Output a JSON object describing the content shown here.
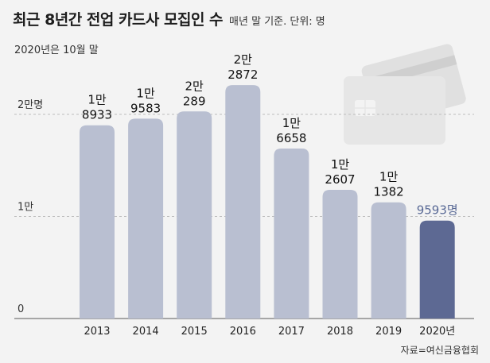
{
  "header": {
    "title": "최근 8년간 전업 카드사 모집인 수",
    "subtitle": "매년 말 기준. 단위: 명",
    "note": "2020년은 10월 말",
    "source": "자료=여신금융협회"
  },
  "chart_data": {
    "type": "bar",
    "title": "최근 8년간 전업 카드사 모집인 수",
    "categories": [
      "2013",
      "2014",
      "2015",
      "2016",
      "2017",
      "2018",
      "2019",
      "2020년"
    ],
    "values": [
      18933,
      19583,
      20289,
      22872,
      16658,
      12607,
      11382,
      9593
    ],
    "value_labels": [
      [
        "1만",
        "8933"
      ],
      [
        "1만",
        "9583"
      ],
      [
        "2만",
        "289"
      ],
      [
        "2만",
        "2872"
      ],
      [
        "1만",
        "6658"
      ],
      [
        "1만",
        "2607"
      ],
      [
        "1만",
        "1382"
      ],
      [
        "9593명"
      ]
    ],
    "yticks": [
      {
        "value": 0,
        "label": "0"
      },
      {
        "value": 10000,
        "label": "1만"
      },
      {
        "value": 20000,
        "label": "2만명"
      }
    ],
    "ylim": [
      0,
      25000
    ],
    "highlight_index": 7,
    "colors": {
      "bar": "#b9bfd1",
      "bar_highlight": "#5d6993",
      "grid": "#bdbdbd",
      "card": "#e2e2e2"
    },
    "xlabel": "",
    "ylabel": "",
    "grid": true
  }
}
